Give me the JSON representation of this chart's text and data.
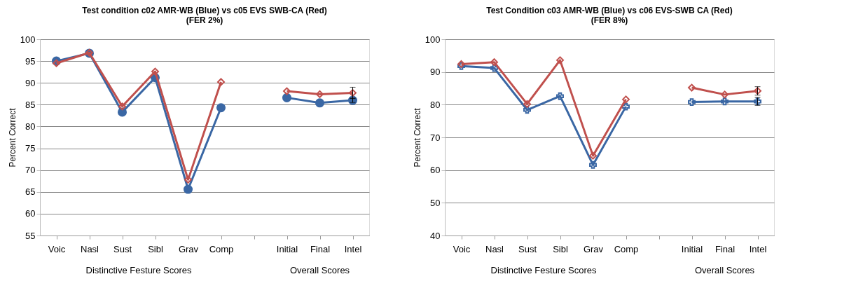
{
  "chart_data": [
    {
      "type": "line",
      "title": "Test condition c02 AMR-WB (Blue) vs c05 EVS SWB-CA (Red)\n(FER 2%)",
      "ylabel": "Percent Correct",
      "categories": [
        "Voic",
        "Nasl",
        "Sust",
        "Sibl",
        "Grav",
        "Comp",
        null,
        "Initial",
        "Final",
        "Intel"
      ],
      "ylim": [
        55,
        100
      ],
      "yticks": [
        55,
        60,
        65,
        70,
        75,
        80,
        85,
        90,
        95,
        100
      ],
      "grid": "y",
      "annotations": [
        "Distinctive Festure Scores",
        "Overall Scores"
      ],
      "series": [
        {
          "color": "#3a67a4",
          "marker": "circle",
          "values": [
            95.0,
            96.8,
            83.3,
            91.2,
            65.6,
            84.3,
            null,
            86.6,
            85.4,
            86.0
          ],
          "errors": [
            null,
            null,
            null,
            null,
            null,
            null,
            null,
            null,
            null,
            0.5
          ]
        },
        {
          "color": "#c0504d",
          "marker": "diamond",
          "values": [
            94.5,
            96.9,
            84.6,
            92.6,
            67.8,
            90.2,
            null,
            88.1,
            87.4,
            87.7
          ],
          "errors": [
            null,
            null,
            null,
            null,
            null,
            null,
            null,
            null,
            null,
            1.3
          ]
        }
      ]
    },
    {
      "type": "line",
      "title": "Test Condition c03 AMR-WB (Blue) vs c06  EVS-SWB CA (Red)\n(FER 8%)",
      "ylabel": "Percent Correct",
      "categories": [
        "Voic",
        "Nasl",
        "Sust",
        "Sibl",
        "Grav",
        "Comp",
        null,
        "Initial",
        "Final",
        "Intel"
      ],
      "ylim": [
        40,
        100
      ],
      "yticks": [
        40,
        50,
        60,
        70,
        80,
        90,
        100
      ],
      "grid": "y",
      "annotations": [
        "Distinctive Festure Scores",
        "Overall Scores"
      ],
      "series": [
        {
          "color": "#3a67a4",
          "marker": "cross",
          "values": [
            91.8,
            91.2,
            78.4,
            82.6,
            61.6,
            79.4,
            null,
            80.8,
            81.0,
            81.0
          ],
          "errors": [
            null,
            null,
            null,
            null,
            null,
            null,
            null,
            null,
            null,
            1.2
          ]
        },
        {
          "color": "#c0504d",
          "marker": "diamond",
          "values": [
            92.4,
            93.0,
            80.2,
            93.6,
            64.4,
            81.6,
            null,
            85.2,
            83.1,
            84.2
          ],
          "errors": [
            null,
            null,
            null,
            null,
            null,
            null,
            null,
            null,
            null,
            1.3
          ]
        }
      ]
    }
  ]
}
